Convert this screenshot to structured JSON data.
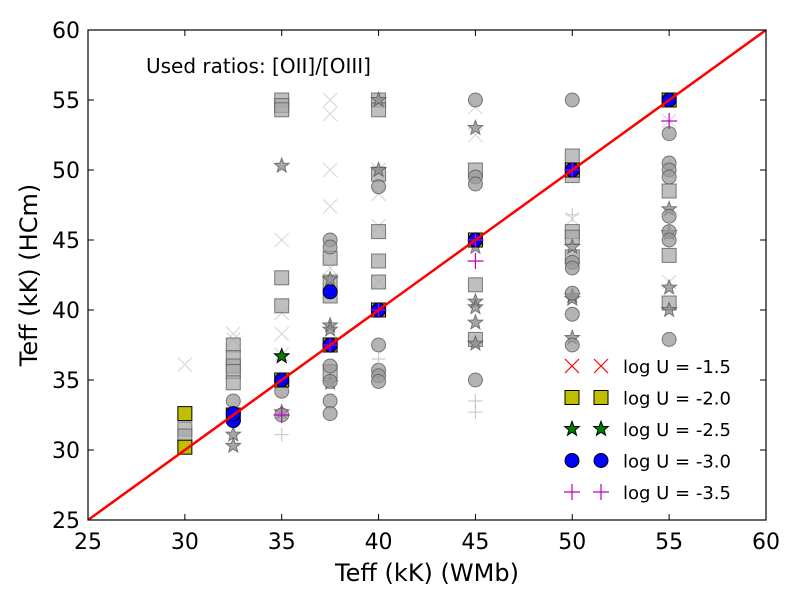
{
  "chart_data": {
    "type": "scatter",
    "title": "",
    "xlabel": "Teff (kK) (WMb)",
    "ylabel": "Teff (kK) (HCm)",
    "xlim": [
      25,
      60
    ],
    "ylim": [
      25,
      60
    ],
    "xticks": [
      25,
      30,
      35,
      40,
      45,
      50,
      55,
      60
    ],
    "yticks": [
      25,
      30,
      35,
      40,
      45,
      50,
      55,
      60
    ],
    "xtick_labels": [
      "25",
      "30",
      "35",
      "40",
      "45",
      "50",
      "55",
      "60"
    ],
    "ytick_labels": [
      "25",
      "30",
      "35",
      "40",
      "45",
      "50",
      "55",
      "60"
    ],
    "grid": false,
    "annotation": "Used ratios: [OII]/[OIII]",
    "legend_position": "bottom-right",
    "identity_line": {
      "x": [
        25,
        60
      ],
      "y": [
        25,
        60
      ],
      "color": "#ff0000"
    },
    "background_series": [
      {
        "marker": "x",
        "color": "#cccccc",
        "points": [
          [
            30,
            36.1
          ],
          [
            32.5,
            38.3
          ],
          [
            32.5,
            37.9
          ],
          [
            35,
            45.0
          ],
          [
            35,
            39.8
          ],
          [
            35,
            38.3
          ],
          [
            35,
            36.8
          ],
          [
            37.5,
            55.0
          ],
          [
            37.5,
            54.0
          ],
          [
            37.5,
            50.0
          ],
          [
            37.5,
            47.4
          ],
          [
            37.5,
            43.0
          ],
          [
            40,
            50.0
          ],
          [
            40,
            48.3
          ],
          [
            40,
            46.0
          ],
          [
            40,
            42.0
          ],
          [
            45,
            54.5
          ],
          [
            45,
            52.5
          ],
          [
            50,
            46.5
          ],
          [
            55,
            42.0
          ],
          [
            55,
            53.5
          ]
        ]
      },
      {
        "marker": "square",
        "color": "#aaaaaa",
        "points": [
          [
            30,
            31.5
          ],
          [
            30,
            31.0
          ],
          [
            32.5,
            37.5
          ],
          [
            32.5,
            36.6
          ],
          [
            32.5,
            36.0
          ],
          [
            32.5,
            35.6
          ],
          [
            32.5,
            34.8
          ],
          [
            35,
            55.0
          ],
          [
            35,
            54.6
          ],
          [
            35,
            54.3
          ],
          [
            35,
            42.3
          ],
          [
            35,
            40.3
          ],
          [
            37.5,
            43.7
          ],
          [
            37.5,
            42.0
          ],
          [
            37.5,
            41.0
          ],
          [
            37.5,
            35.6
          ],
          [
            40,
            55.0
          ],
          [
            40,
            54.3
          ],
          [
            40,
            49.7
          ],
          [
            40,
            45.6
          ],
          [
            40,
            43.5
          ],
          [
            40,
            42.0
          ],
          [
            45,
            50.0
          ],
          [
            45,
            41.8
          ],
          [
            45,
            37.9
          ],
          [
            50,
            51.0
          ],
          [
            50,
            49.6
          ],
          [
            50,
            45.6
          ],
          [
            50,
            45.2
          ],
          [
            50,
            43.8
          ],
          [
            55,
            48.5
          ],
          [
            55,
            43.9
          ],
          [
            55,
            40.5
          ]
        ]
      },
      {
        "marker": "star",
        "color": "#888888",
        "points": [
          [
            32.5,
            31.1
          ],
          [
            32.5,
            30.3
          ],
          [
            35,
            50.3
          ],
          [
            35,
            32.7
          ],
          [
            37.5,
            42.2
          ],
          [
            37.5,
            38.9
          ],
          [
            37.5,
            38.6
          ],
          [
            37.5,
            34.8
          ],
          [
            40,
            55.0
          ],
          [
            40,
            50.0
          ],
          [
            45,
            53.0
          ],
          [
            45,
            40.6
          ],
          [
            45,
            40.2
          ],
          [
            45,
            39.1
          ],
          [
            45,
            37.6
          ],
          [
            45,
            44.5
          ],
          [
            50,
            44.5
          ],
          [
            50,
            41.0
          ],
          [
            50,
            40.8
          ],
          [
            50,
            38.0
          ],
          [
            55,
            47.2
          ],
          [
            55,
            45.5
          ],
          [
            55,
            41.6
          ],
          [
            55,
            40.0
          ]
        ]
      },
      {
        "marker": "circle",
        "color": "#999999",
        "points": [
          [
            32.5,
            33.5
          ],
          [
            35,
            34.2
          ],
          [
            35,
            32.5
          ],
          [
            37.5,
            45.0
          ],
          [
            37.5,
            44.5
          ],
          [
            37.5,
            36.0
          ],
          [
            37.5,
            34.9
          ],
          [
            37.5,
            33.5
          ],
          [
            37.5,
            32.6
          ],
          [
            40,
            48.8
          ],
          [
            40,
            37.5
          ],
          [
            40,
            35.7
          ],
          [
            40,
            35.3
          ],
          [
            40,
            34.9
          ],
          [
            45,
            55.0
          ],
          [
            45,
            49.5
          ],
          [
            45,
            49.0
          ],
          [
            45,
            35.0
          ],
          [
            50,
            55.0
          ],
          [
            50,
            43.4
          ],
          [
            50,
            43.0
          ],
          [
            50,
            41.2
          ],
          [
            50,
            39.7
          ],
          [
            50,
            37.5
          ],
          [
            55,
            52.6
          ],
          [
            55,
            50.5
          ],
          [
            55,
            50.0
          ],
          [
            55,
            49.5
          ],
          [
            55,
            46.7
          ],
          [
            55,
            45.6
          ],
          [
            55,
            45.0
          ],
          [
            55,
            37.9
          ]
        ]
      },
      {
        "marker": "plus",
        "color": "#bbbbbb",
        "points": [
          [
            35,
            31.1
          ],
          [
            40,
            36.5
          ],
          [
            45,
            33.5
          ],
          [
            45,
            32.7
          ],
          [
            50,
            46.8
          ]
        ]
      }
    ],
    "series": [
      {
        "name": "log U = -1.5",
        "marker": "x",
        "color": "#ff0000",
        "x": [],
        "y": []
      },
      {
        "name": "log U = -2.0",
        "marker": "square",
        "color": "#bfbf00",
        "x": [
          30,
          30,
          32.5,
          35,
          37.5,
          40,
          45,
          50,
          55
        ],
        "y": [
          32.6,
          30.2,
          32.5,
          35.0,
          37.5,
          40.0,
          45.0,
          50.0,
          55.0
        ]
      },
      {
        "name": "log U = -2.5",
        "marker": "star",
        "color": "#007f00",
        "x": [
          35
        ],
        "y": [
          36.7
        ]
      },
      {
        "name": "log U = -3.0",
        "marker": "circle",
        "color": "#0000ff",
        "x": [
          32.5,
          32.5,
          35,
          37.5,
          37.5,
          40,
          45,
          50,
          55
        ],
        "y": [
          32.1,
          32.6,
          35.0,
          41.3,
          37.5,
          40.0,
          45.0,
          50.0,
          55.0
        ]
      },
      {
        "name": "log U = -3.5",
        "marker": "plus",
        "color": "#bf00bf",
        "x": [
          35,
          37.5,
          40,
          45,
          45,
          50,
          55
        ],
        "y": [
          32.5,
          37.5,
          40.0,
          45.0,
          43.5,
          50.0,
          53.5
        ]
      }
    ]
  }
}
